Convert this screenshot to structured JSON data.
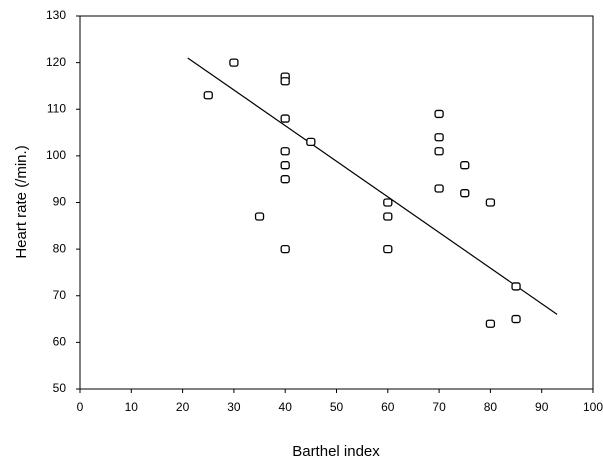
{
  "chart_data": {
    "type": "scatter",
    "x": [
      25,
      30,
      35,
      40,
      40,
      40,
      40,
      40,
      40,
      40,
      45,
      60,
      60,
      60,
      70,
      70,
      70,
      70,
      75,
      75,
      80,
      80,
      85,
      85
    ],
    "y": [
      113,
      120,
      87,
      117,
      116,
      108,
      101,
      98,
      95,
      80,
      103,
      90,
      87,
      80,
      109,
      104,
      101,
      93,
      98,
      92,
      90,
      64,
      72,
      65
    ],
    "trend_line": {
      "x": [
        21,
        93
      ],
      "y": [
        121,
        66
      ]
    },
    "xlabel": "Barthel index",
    "ylabel": "Heart rate (/min.)",
    "xlim": [
      0,
      100
    ],
    "ylim": [
      50,
      130
    ],
    "xticks": [
      0,
      10,
      20,
      30,
      40,
      50,
      60,
      70,
      80,
      90,
      100
    ],
    "yticks": [
      50,
      60,
      70,
      80,
      90,
      100,
      110,
      120,
      130
    ],
    "color": "#000000"
  }
}
